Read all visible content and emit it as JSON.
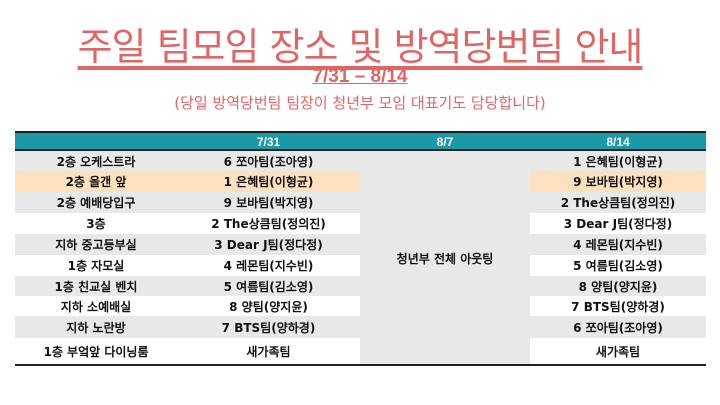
{
  "title": "주일 팀모임 장소 및 방역당번팀 안내",
  "date_range": "7/31 – 8/14",
  "note": "(당일 방역당번팀 팀장이 청년부 모임 대표기도 담당합니다)",
  "colors": {
    "accent": "#e06666",
    "header": "#1a99a8",
    "row_gray": "#e8e8e8",
    "row_highlight": "#fde0bd"
  },
  "table": {
    "headers": [
      "",
      "7/31",
      "8/7",
      "8/14"
    ],
    "merged_8_7": "청년부 전체 아웃팅",
    "rows": [
      {
        "place": "2층 오케스트라",
        "d1": "6 쪼아팀(조아영)",
        "d3": "1 은혜팀(이형균)"
      },
      {
        "place": "2층 올갠 앞",
        "d1": "1 은혜팀(이형균)",
        "d3": "9 보바팀(박지영)"
      },
      {
        "place": "2층 예배당입구",
        "d1": "9 보바팀(박지영)",
        "d3": "2 The상큼팀(정의진)"
      },
      {
        "place": "3층",
        "d1": "2 The상큼팀(정의진)",
        "d3": "3 Dear J팀(정다정)"
      },
      {
        "place": "지하 중고등부실",
        "d1": "3 Dear J팀(정다정)",
        "d3": "4 레몬팀(지수빈)"
      },
      {
        "place": "1층 자모실",
        "d1": "4 레몬팀(지수빈)",
        "d3": "5 여름팀(김소영)"
      },
      {
        "place": "1층 친교실 벤치",
        "d1": "5 여름팀(김소영)",
        "d3": "8 양팀(양지윤)"
      },
      {
        "place": "지하 소예배실",
        "d1": "8 양팀(양지윤)",
        "d3": "7 BTS팀(양하경)"
      },
      {
        "place": "지하 노란방",
        "d1": "7 BTS팀(양하경)",
        "d3": "6 쪼아팀(조아영)"
      },
      {
        "place": "1층 부엌앞 다이닝룸",
        "d1": "새가족팀",
        "d3": "새가족팀"
      }
    ]
  }
}
